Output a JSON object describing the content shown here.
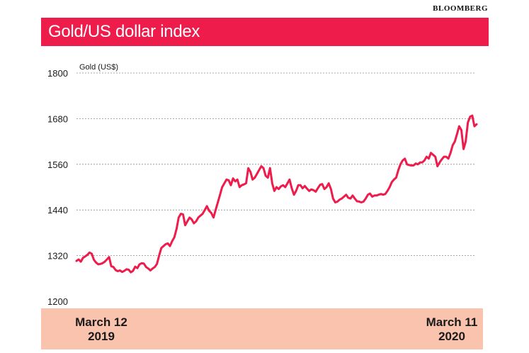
{
  "source": "BLOOMBERG",
  "header": {
    "title": "Gold/US dollar index"
  },
  "chart_data": {
    "type": "line",
    "title": "Gold/US dollar index",
    "ylabel": "Gold (US$)",
    "ylim": [
      1200,
      1800
    ],
    "yticks": [
      "1800",
      "1680",
      "1560",
      "1440",
      "1320",
      "1200"
    ],
    "x_labels": [
      {
        "line1": "March 12",
        "line2": "2019"
      },
      {
        "line1": "March 11",
        "line2": "2020"
      }
    ],
    "grid": "horizontal dashed",
    "line_color": "#ee1c4b",
    "series": [
      {
        "values": [
          1306,
          1310,
          1304,
          1314,
          1318,
          1322,
          1328,
          1325,
          1309,
          1302,
          1297,
          1298,
          1300,
          1304,
          1310,
          1316,
          1292,
          1290,
          1282,
          1279,
          1281,
          1277,
          1280,
          1284,
          1283,
          1276,
          1280,
          1291,
          1287,
          1297,
          1300,
          1299,
          1290,
          1286,
          1281,
          1286,
          1290,
          1298,
          1320,
          1340,
          1345,
          1350,
          1352,
          1345,
          1358,
          1368,
          1390,
          1420,
          1430,
          1428,
          1400,
          1410,
          1420,
          1415,
          1405,
          1410,
          1420,
          1425,
          1430,
          1440,
          1450,
          1438,
          1432,
          1420,
          1440,
          1460,
          1480,
          1500,
          1510,
          1520,
          1518,
          1505,
          1523,
          1515,
          1520,
          1500,
          1505,
          1507,
          1510,
          1550,
          1540,
          1520,
          1525,
          1535,
          1545,
          1555,
          1550,
          1530,
          1525,
          1550,
          1510,
          1490,
          1500,
          1495,
          1502,
          1505,
          1500,
          1510,
          1520,
          1497,
          1480,
          1490,
          1505,
          1505,
          1497,
          1503,
          1496,
          1490,
          1494,
          1492,
          1488,
          1497,
          1506,
          1508,
          1495,
          1500,
          1510,
          1495,
          1470,
          1460,
          1462,
          1467,
          1470,
          1475,
          1480,
          1472,
          1470,
          1478,
          1470,
          1463,
          1462,
          1460,
          1462,
          1470,
          1480,
          1483,
          1475,
          1478,
          1478,
          1480,
          1482,
          1480,
          1482,
          1490,
          1500,
          1513,
          1520,
          1525,
          1545,
          1560,
          1570,
          1575,
          1560,
          1558,
          1557,
          1557,
          1562,
          1560,
          1565,
          1565,
          1570,
          1580,
          1575,
          1590,
          1585,
          1580,
          1555,
          1565,
          1573,
          1580,
          1580,
          1575,
          1590,
          1610,
          1620,
          1640,
          1660,
          1650,
          1600,
          1620,
          1670,
          1685,
          1688,
          1660,
          1665
        ]
      }
    ]
  }
}
